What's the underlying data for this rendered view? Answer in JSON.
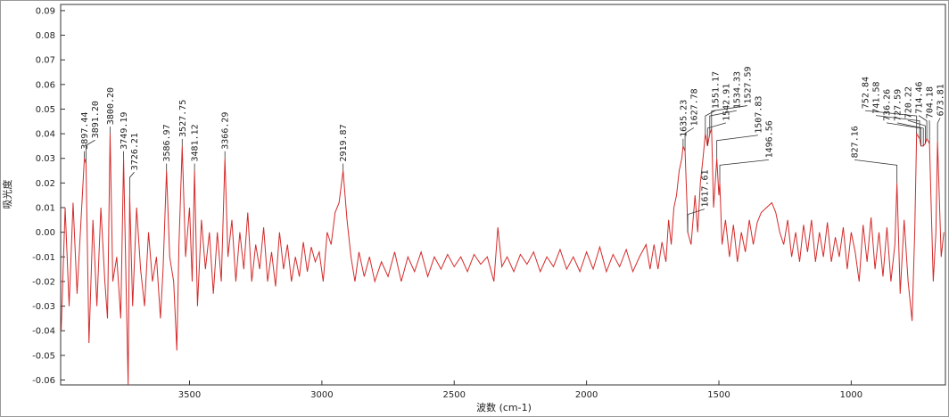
{
  "chart_data": {
    "type": "line",
    "x_label": "波数 (cm-1)",
    "y_label": "吸光度",
    "xlim": [
      3987,
      644
    ],
    "ylim": [
      -0.062,
      0.0925
    ],
    "xticks": [
      3500,
      3000,
      2500,
      2000,
      1500,
      1000
    ],
    "yticks": [
      0.09,
      0.08,
      0.07,
      0.06,
      0.05,
      0.04,
      0.03,
      0.02,
      0.01,
      {
        "value": 0,
        "label": "0.00"
      },
      -0.01,
      -0.02,
      -0.03,
      -0.04,
      -0.05,
      -0.06
    ],
    "grid": false,
    "series": [
      {
        "color": "#d42a2a",
        "x": [
          3985,
          3970,
          3955,
          3940,
          3925,
          3910,
          3897.44,
          3891.2,
          3880,
          3865,
          3850,
          3835,
          3820,
          3810,
          3800.2,
          3790,
          3775,
          3760,
          3749.19,
          3740,
          3732,
          3726.21,
          3715,
          3700,
          3685,
          3670,
          3655,
          3640,
          3625,
          3610,
          3600,
          3586.97,
          3575,
          3560,
          3548,
          3540,
          3527.75,
          3515,
          3500,
          3490,
          3481.12,
          3470,
          3455,
          3440,
          3425,
          3410,
          3395,
          3380,
          3366.29,
          3355,
          3340,
          3325,
          3310,
          3295,
          3280,
          3265,
          3250,
          3235,
          3220,
          3205,
          3190,
          3175,
          3160,
          3145,
          3130,
          3115,
          3100,
          3085,
          3070,
          3055,
          3040,
          3025,
          3010,
          2995,
          2980,
          2965,
          2950,
          2935,
          2919.87,
          2905,
          2890,
          2875,
          2860,
          2840,
          2820,
          2800,
          2775,
          2750,
          2725,
          2700,
          2675,
          2650,
          2625,
          2600,
          2575,
          2550,
          2525,
          2500,
          2475,
          2450,
          2425,
          2400,
          2375,
          2350,
          2335,
          2320,
          2300,
          2275,
          2250,
          2225,
          2200,
          2175,
          2150,
          2125,
          2100,
          2075,
          2050,
          2025,
          2000,
          1975,
          1950,
          1925,
          1900,
          1875,
          1850,
          1825,
          1800,
          1775,
          1760,
          1745,
          1730,
          1715,
          1700,
          1690,
          1680,
          1670,
          1660,
          1650,
          1640,
          1635.23,
          1627.78,
          1620,
          1617.61,
          1605,
          1590,
          1580,
          1570,
          1560,
          1551.17,
          1542.91,
          1534.33,
          1527.59,
          1520,
          1507.83,
          1500,
          1496.56,
          1488,
          1475,
          1460,
          1445,
          1430,
          1415,
          1400,
          1385,
          1370,
          1355,
          1340,
          1320,
          1300,
          1285,
          1270,
          1255,
          1240,
          1225,
          1210,
          1195,
          1180,
          1165,
          1150,
          1135,
          1120,
          1105,
          1090,
          1075,
          1060,
          1045,
          1030,
          1015,
          1000,
          985,
          970,
          955,
          940,
          925,
          910,
          895,
          880,
          865,
          850,
          835,
          827.16,
          815,
          800,
          785,
          770,
          760,
          752.84,
          741.58,
          736.26,
          727.59,
          720.22,
          714.46,
          704.18,
          690,
          680,
          673.81,
          660,
          650
        ],
        "values": [
          -0.04,
          0.01,
          -0.03,
          0.012,
          -0.025,
          0.005,
          0.03,
          0.028,
          -0.045,
          0.005,
          -0.03,
          0.01,
          -0.02,
          -0.035,
          0.04,
          -0.02,
          -0.01,
          -0.035,
          0.03,
          -0.02,
          -0.062,
          0.015,
          -0.03,
          0.01,
          -0.015,
          -0.03,
          0,
          -0.02,
          -0.01,
          -0.035,
          -0.015,
          0.025,
          -0.01,
          -0.02,
          -0.048,
          -0.005,
          0.035,
          -0.01,
          0.01,
          -0.02,
          0.025,
          -0.03,
          0.005,
          -0.015,
          0,
          -0.025,
          0,
          -0.02,
          0.03,
          -0.01,
          0.005,
          -0.02,
          0,
          -0.015,
          0.008,
          -0.02,
          -0.005,
          -0.015,
          0.002,
          -0.02,
          -0.008,
          -0.022,
          0,
          -0.015,
          -0.005,
          -0.02,
          -0.01,
          -0.018,
          -0.004,
          -0.016,
          -0.006,
          -0.012,
          -0.008,
          -0.02,
          0,
          -0.005,
          0.008,
          0.012,
          0.025,
          0.005,
          -0.01,
          -0.02,
          -0.008,
          -0.018,
          -0.01,
          -0.02,
          -0.012,
          -0.018,
          -0.008,
          -0.02,
          -0.01,
          -0.016,
          -0.008,
          -0.018,
          -0.01,
          -0.015,
          -0.009,
          -0.014,
          -0.01,
          -0.016,
          -0.009,
          -0.013,
          -0.01,
          -0.02,
          0.002,
          -0.014,
          -0.01,
          -0.016,
          -0.009,
          -0.013,
          -0.008,
          -0.016,
          -0.01,
          -0.014,
          -0.007,
          -0.015,
          -0.01,
          -0.016,
          -0.008,
          -0.015,
          -0.006,
          -0.016,
          -0.009,
          -0.014,
          -0.007,
          -0.016,
          -0.01,
          -0.005,
          -0.015,
          -0.005,
          -0.015,
          -0.004,
          -0.012,
          0.005,
          -0.005,
          0.01,
          0.015,
          0.025,
          0.03,
          0.035,
          0.033,
          0.01,
          0,
          -0.005,
          0.015,
          0,
          0.02,
          0.03,
          0.04,
          0.035,
          0.04,
          0.042,
          0.01,
          0.03,
          0.015,
          0.02,
          -0.005,
          0.005,
          -0.01,
          0.003,
          -0.012,
          0,
          -0.008,
          0.005,
          -0.005,
          0.004,
          0.008,
          0.01,
          0.012,
          0.008,
          0,
          -0.005,
          0.005,
          -0.01,
          0,
          -0.012,
          0.003,
          -0.008,
          0.005,
          -0.012,
          0,
          -0.01,
          0.004,
          -0.012,
          -0.002,
          -0.01,
          0.002,
          -0.015,
          0,
          -0.008,
          -0.02,
          0.003,
          -0.012,
          0.006,
          -0.015,
          0,
          -0.018,
          0.002,
          -0.02,
          -0.005,
          0.02,
          -0.025,
          0.005,
          -0.02,
          -0.036,
          0,
          0.04,
          0.038,
          0.035,
          0.035,
          0.036,
          0.038,
          0.036,
          -0.02,
          0,
          0.037,
          -0.01,
          0
        ]
      }
    ],
    "peaks": [
      {
        "value": 3897.44,
        "label": "3897.44",
        "y": 0.03
      },
      {
        "value": 3891.2,
        "label": "3891.20",
        "y": 0.028
      },
      {
        "value": 3800.2,
        "label": "3800.20",
        "y": 0.04
      },
      {
        "value": 3749.19,
        "label": "3749.19",
        "y": 0.03
      },
      {
        "value": 3726.21,
        "label": "3726.21",
        "y": 0.015
      },
      {
        "value": 3586.97,
        "label": "3586.97",
        "y": 0.025
      },
      {
        "value": 3527.75,
        "label": "3527.75",
        "y": 0.035
      },
      {
        "value": 3481.12,
        "label": "3481.12",
        "y": 0.025
      },
      {
        "value": 3366.29,
        "label": "3366.29",
        "y": 0.03
      },
      {
        "value": 2919.87,
        "label": "2919.87",
        "y": 0.025
      },
      {
        "value": 1635.23,
        "label": "1635.23",
        "y": 0.035
      },
      {
        "value": 1627.78,
        "label": "1627.78",
        "y": 0.033
      },
      {
        "value": 1617.61,
        "label": "1617.61",
        "y": 0
      },
      {
        "value": 1551.17,
        "label": "1551.17",
        "y": 0.04
      },
      {
        "value": 1542.91,
        "label": "1542.91",
        "y": 0.035
      },
      {
        "value": 1534.33,
        "label": "1534.33",
        "y": 0.04
      },
      {
        "value": 1527.59,
        "label": "1527.59",
        "y": 0.042
      },
      {
        "value": 1507.83,
        "label": "1507.83",
        "y": 0.03
      },
      {
        "value": 1496.56,
        "label": "1496.56",
        "y": 0.02
      },
      {
        "value": 827.16,
        "label": "827.16",
        "y": 0.02
      },
      {
        "value": 752.84,
        "label": "752.84",
        "y": 0.04
      },
      {
        "value": 741.58,
        "label": "741.58",
        "y": 0.038
      },
      {
        "value": 736.26,
        "label": "736.26",
        "y": 0.035
      },
      {
        "value": 727.59,
        "label": "727.59",
        "y": 0.035
      },
      {
        "value": 720.22,
        "label": "720.22",
        "y": 0.036
      },
      {
        "value": 714.46,
        "label": "714.46",
        "y": 0.038
      },
      {
        "value": 704.18,
        "label": "704.18",
        "y": 0.036
      },
      {
        "value": 673.81,
        "label": "673.81",
        "y": 0.037
      }
    ]
  }
}
